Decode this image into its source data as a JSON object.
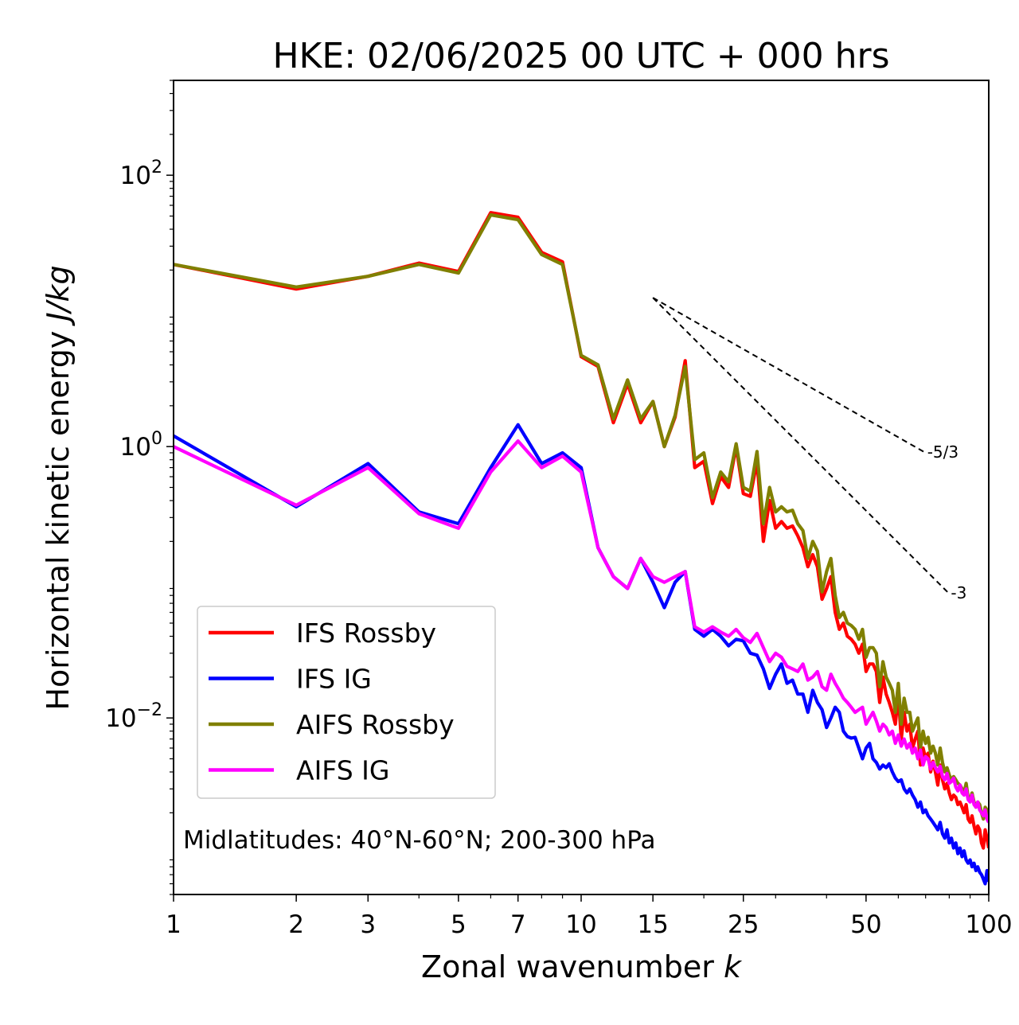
{
  "chart_data": {
    "type": "line",
    "title": "HKE: 02/06/2025 00 UTC + 000 hrs",
    "xlabel_prefix": "Zonal wavenumber ",
    "xlabel_var": "k",
    "ylabel_prefix": "Horizontal kinetic energy ",
    "ylabel_units": "J/kg",
    "x_scale": "log",
    "y_scale": "log",
    "xlim": [
      1,
      100
    ],
    "ylim": [
      0.0005,
      500
    ],
    "x_ticks": [
      {
        "value": 1,
        "label": "1"
      },
      {
        "value": 2,
        "label": "2"
      },
      {
        "value": 3,
        "label": "3"
      },
      {
        "value": 5,
        "label": "5"
      },
      {
        "value": 7,
        "label": "7"
      },
      {
        "value": 10,
        "label": "10"
      },
      {
        "value": 15,
        "label": "15"
      },
      {
        "value": 25,
        "label": "25"
      },
      {
        "value": 50,
        "label": "50"
      },
      {
        "value": 100,
        "label": "100"
      }
    ],
    "y_ticks": [
      {
        "value": 0.01,
        "base": "10",
        "exp": "−2"
      },
      {
        "value": 1,
        "base": "10",
        "exp": "0"
      },
      {
        "value": 100,
        "base": "10",
        "exp": "2"
      }
    ],
    "legend_position": "lower-left",
    "annotation": "Midlatitudes: 40°N-60°N; 200-300 hPa",
    "reference_lines": [
      {
        "label": "-5/3",
        "slope": -1.6667,
        "x": [
          15,
          70
        ],
        "y": [
          12.5,
          0.9
        ]
      },
      {
        "label": "-3",
        "slope": -3,
        "x": [
          15,
          80
        ],
        "y": [
          12.5,
          0.0823
        ]
      }
    ],
    "series": [
      {
        "name": "IFS Rossby",
        "color": "#ff0000",
        "x": [
          1,
          2,
          3,
          4,
          5,
          6,
          7,
          8,
          9,
          10,
          11,
          12,
          13,
          14,
          15,
          16,
          17,
          18,
          19,
          20,
          21,
          22,
          23,
          24,
          25,
          26,
          27,
          28,
          29,
          30,
          31,
          32,
          33,
          34,
          35,
          36,
          37,
          38,
          39,
          40,
          41,
          42,
          43,
          44,
          45,
          46,
          47,
          48,
          49,
          50,
          51,
          52,
          53,
          54,
          55,
          56,
          57,
          58,
          59,
          60,
          61,
          62,
          63,
          64,
          65,
          66,
          67,
          68,
          69,
          70,
          71,
          72,
          73,
          74,
          75,
          76,
          77,
          78,
          79,
          80,
          81,
          82,
          83,
          84,
          85,
          86,
          87,
          88,
          89,
          90,
          91,
          92,
          93,
          94,
          95,
          96,
          97,
          98,
          99,
          100
        ],
        "y": [
          22,
          14.5,
          18,
          22.5,
          19.5,
          53,
          49,
          27,
          23,
          4.6,
          3.9,
          1.5,
          2.9,
          1.5,
          2.15,
          1.0,
          1.65,
          4.3,
          0.7,
          0.78,
          0.38,
          0.6,
          0.5,
          1.0,
          0.45,
          0.43,
          0.78,
          0.2,
          0.4,
          0.25,
          0.28,
          0.25,
          0.26,
          0.22,
          0.18,
          0.13,
          0.16,
          0.13,
          0.075,
          0.09,
          0.11,
          0.06,
          0.045,
          0.05,
          0.04,
          0.038,
          0.035,
          0.03,
          0.035,
          0.022,
          0.025,
          0.025,
          0.022,
          0.013,
          0.02,
          0.015,
          0.013,
          0.011,
          0.009,
          0.015,
          0.007,
          0.011,
          0.008,
          0.009,
          0.006,
          0.007,
          0.008,
          0.0045,
          0.006,
          0.005,
          0.0055,
          0.004,
          0.0048,
          0.004,
          0.0032,
          0.0045,
          0.0035,
          0.003,
          0.0033,
          0.0028,
          0.0025,
          0.0027,
          0.0026,
          0.0023,
          0.0024,
          0.0022,
          0.002,
          0.0023,
          0.0018,
          0.0017,
          0.0019,
          0.0016,
          0.0014,
          0.0016,
          0.0015,
          0.0012,
          0.0011,
          0.0015,
          0.0013,
          0.0011
        ]
      },
      {
        "name": "IFS IG",
        "color": "#0000ff",
        "x": [
          1,
          2,
          3,
          4,
          5,
          6,
          7,
          8,
          9,
          10,
          11,
          12,
          13,
          14,
          15,
          16,
          17,
          18,
          19,
          20,
          21,
          22,
          23,
          24,
          25,
          26,
          27,
          28,
          29,
          30,
          31,
          32,
          33,
          34,
          35,
          36,
          37,
          38,
          39,
          40,
          41,
          42,
          43,
          44,
          45,
          46,
          47,
          48,
          49,
          50,
          51,
          52,
          53,
          54,
          55,
          56,
          57,
          58,
          59,
          60,
          61,
          62,
          63,
          64,
          65,
          66,
          67,
          68,
          69,
          70,
          71,
          72,
          73,
          74,
          75,
          76,
          77,
          78,
          79,
          80,
          81,
          82,
          83,
          84,
          85,
          86,
          87,
          88,
          89,
          90,
          91,
          92,
          93,
          94,
          95,
          96,
          97,
          98,
          99,
          100
        ],
        "y": [
          1.2,
          0.36,
          0.75,
          0.33,
          0.27,
          0.7,
          1.45,
          0.75,
          0.9,
          0.7,
          0.18,
          0.11,
          0.09,
          0.15,
          0.1,
          0.065,
          0.1,
          0.12,
          0.045,
          0.04,
          0.045,
          0.04,
          0.034,
          0.038,
          0.037,
          0.03,
          0.029,
          0.023,
          0.0165,
          0.021,
          0.025,
          0.018,
          0.019,
          0.015,
          0.015,
          0.011,
          0.016,
          0.013,
          0.0115,
          0.0085,
          0.01,
          0.012,
          0.011,
          0.008,
          0.0073,
          0.0071,
          0.0072,
          0.006,
          0.005,
          0.006,
          0.0065,
          0.005,
          0.0047,
          0.0042,
          0.0045,
          0.0043,
          0.0046,
          0.004,
          0.0036,
          0.0034,
          0.0035,
          0.003,
          0.0028,
          0.003,
          0.0027,
          0.0025,
          0.0022,
          0.0024,
          0.002,
          0.0021,
          0.0019,
          0.0018,
          0.0017,
          0.0016,
          0.0015,
          0.0017,
          0.0014,
          0.0013,
          0.0015,
          0.0012,
          0.0013,
          0.0011,
          0.0012,
          0.001,
          0.0011,
          0.00095,
          0.00105,
          0.0009,
          0.00085,
          0.0009,
          0.0008,
          0.00085,
          0.00075,
          0.0008,
          0.00073,
          0.0007,
          0.00065,
          0.0006,
          0.00075,
          0.00062
        ]
      },
      {
        "name": "AIFS Rossby",
        "color": "#808000",
        "x": [
          1,
          2,
          3,
          4,
          5,
          6,
          7,
          8,
          9,
          10,
          11,
          12,
          13,
          14,
          15,
          16,
          17,
          18,
          19,
          20,
          21,
          22,
          23,
          24,
          25,
          26,
          27,
          28,
          29,
          30,
          31,
          32,
          33,
          34,
          35,
          36,
          37,
          38,
          39,
          40,
          41,
          42,
          43,
          44,
          45,
          46,
          47,
          48,
          49,
          50,
          51,
          52,
          53,
          54,
          55,
          56,
          57,
          58,
          59,
          60,
          61,
          62,
          63,
          64,
          65,
          66,
          67,
          68,
          69,
          70,
          71,
          72,
          73,
          74,
          75,
          76,
          77,
          78,
          79,
          80,
          81,
          82,
          83,
          84,
          85,
          86,
          87,
          88,
          89,
          90,
          91,
          92,
          93,
          94,
          95,
          96,
          97,
          98,
          99,
          100
        ],
        "y": [
          22,
          15,
          18,
          22,
          19,
          51,
          47,
          26,
          22,
          4.7,
          4.0,
          1.6,
          3.1,
          1.6,
          2.15,
          1.0,
          1.7,
          3.9,
          0.8,
          0.9,
          0.42,
          0.65,
          0.55,
          1.05,
          0.5,
          0.47,
          0.92,
          0.27,
          0.5,
          0.33,
          0.36,
          0.33,
          0.34,
          0.27,
          0.24,
          0.15,
          0.2,
          0.17,
          0.085,
          0.12,
          0.15,
          0.08,
          0.055,
          0.06,
          0.05,
          0.048,
          0.045,
          0.038,
          0.045,
          0.028,
          0.033,
          0.033,
          0.03,
          0.017,
          0.026,
          0.02,
          0.018,
          0.016,
          0.011,
          0.018,
          0.009,
          0.014,
          0.011,
          0.011,
          0.008,
          0.009,
          0.01,
          0.006,
          0.008,
          0.0065,
          0.0072,
          0.0055,
          0.0062,
          0.0055,
          0.0045,
          0.006,
          0.0047,
          0.004,
          0.0043,
          0.0038,
          0.0035,
          0.0037,
          0.0035,
          0.0033,
          0.0032,
          0.003,
          0.0028,
          0.0033,
          0.0026,
          0.0025,
          0.0028,
          0.0024,
          0.0022,
          0.0024,
          0.0023,
          0.002,
          0.0018,
          0.0022,
          0.0021,
          0.0019
        ]
      },
      {
        "name": "AIFS IG",
        "color": "#ff00ff",
        "x": [
          1,
          2,
          3,
          4,
          5,
          6,
          7,
          8,
          9,
          10,
          11,
          12,
          13,
          14,
          15,
          16,
          17,
          18,
          19,
          20,
          21,
          22,
          23,
          24,
          25,
          26,
          27,
          28,
          29,
          30,
          31,
          32,
          33,
          34,
          35,
          36,
          37,
          38,
          39,
          40,
          41,
          42,
          43,
          44,
          45,
          46,
          47,
          48,
          49,
          50,
          51,
          52,
          53,
          54,
          55,
          56,
          57,
          58,
          59,
          60,
          61,
          62,
          63,
          64,
          65,
          66,
          67,
          68,
          69,
          70,
          71,
          72,
          73,
          74,
          75,
          76,
          77,
          78,
          79,
          80,
          81,
          82,
          83,
          84,
          85,
          86,
          87,
          88,
          89,
          90,
          91,
          92,
          93,
          94,
          95,
          96,
          97,
          98,
          99,
          100
        ],
        "y": [
          1.0,
          0.37,
          0.7,
          0.32,
          0.25,
          0.65,
          1.1,
          0.7,
          0.85,
          0.65,
          0.18,
          0.11,
          0.09,
          0.15,
          0.11,
          0.1,
          0.11,
          0.12,
          0.047,
          0.043,
          0.047,
          0.043,
          0.04,
          0.045,
          0.039,
          0.036,
          0.042,
          0.033,
          0.026,
          0.03,
          0.028,
          0.024,
          0.023,
          0.022,
          0.025,
          0.019,
          0.02,
          0.022,
          0.017,
          0.016,
          0.021,
          0.018,
          0.016,
          0.014,
          0.013,
          0.012,
          0.011,
          0.0115,
          0.012,
          0.009,
          0.01,
          0.011,
          0.0095,
          0.008,
          0.009,
          0.0085,
          0.0075,
          0.008,
          0.0065,
          0.0075,
          0.0062,
          0.007,
          0.006,
          0.0065,
          0.0055,
          0.006,
          0.005,
          0.0058,
          0.0045,
          0.0052,
          0.005,
          0.0042,
          0.0047,
          0.0043,
          0.004,
          0.0044,
          0.0037,
          0.0035,
          0.0039,
          0.0033,
          0.0034,
          0.0036,
          0.0031,
          0.0029,
          0.0032,
          0.0028,
          0.0027,
          0.003,
          0.0025,
          0.0024,
          0.0027,
          0.0023,
          0.0022,
          0.0024,
          0.0021,
          0.002,
          0.0019,
          0.0021,
          0.0018,
          0.0017
        ]
      }
    ]
  }
}
